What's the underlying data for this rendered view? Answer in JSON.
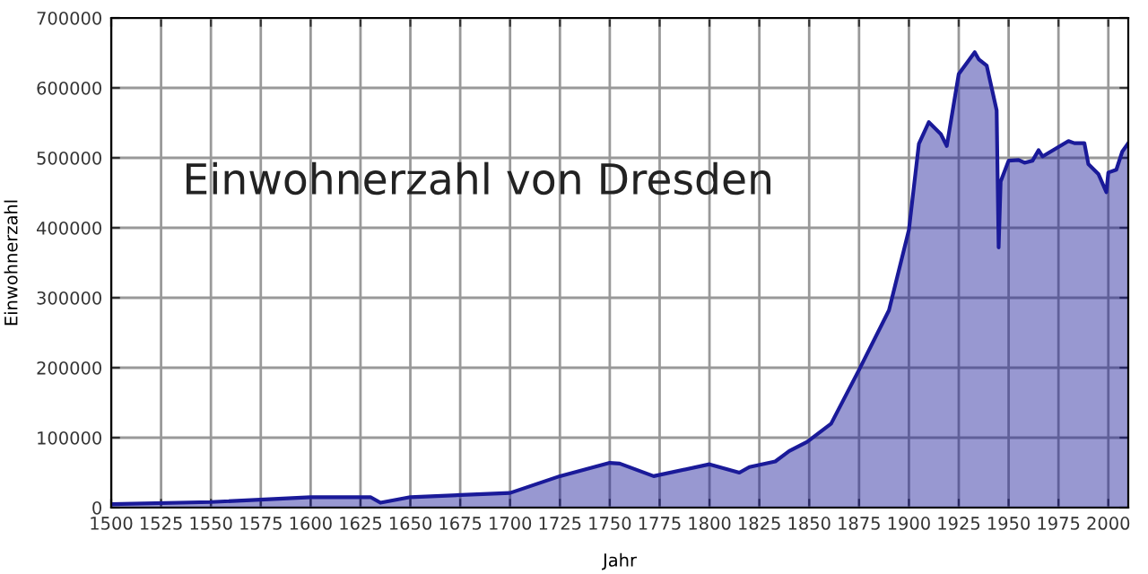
{
  "chart_data": {
    "type": "area",
    "title": "Einwohnerzahl von Dresden",
    "xlabel": "Jahr",
    "ylabel": "Einwohnerzahl",
    "x": [
      1500,
      1550,
      1600,
      1630,
      1635,
      1650,
      1700,
      1725,
      1750,
      1755,
      1772,
      1800,
      1815,
      1820,
      1833,
      1840,
      1849,
      1861,
      1875,
      1890,
      1900,
      1905,
      1910,
      1916,
      1919,
      1925,
      1933,
      1935,
      1939,
      1944,
      1945,
      1946,
      1950,
      1955,
      1958,
      1962,
      1965,
      1967,
      1980,
      1983,
      1988,
      1990,
      1995,
      1999,
      2000,
      2004,
      2007,
      2010
    ],
    "series": [
      {
        "color": "#1a1a99",
        "values": [
          5000,
          8000,
          15000,
          15000,
          7000,
          15000,
          21000,
          45000,
          64000,
          63000,
          45000,
          62000,
          50000,
          58000,
          66000,
          81000,
          94000,
          120000,
          197000,
          282000,
          397000,
          520000,
          551000,
          534000,
          517000,
          620000,
          651000,
          641000,
          632000,
          568000,
          372000,
          466000,
          496000,
          497000,
          493000,
          496000,
          511000,
          502000,
          524000,
          521000,
          521000,
          491000,
          477000,
          451000,
          479000,
          483000,
          509000,
          521000
        ]
      }
    ],
    "xlim": [
      1500,
      2010
    ],
    "xticks": [
      1500,
      1525,
      1550,
      1575,
      1600,
      1625,
      1650,
      1675,
      1700,
      1725,
      1750,
      1775,
      1800,
      1825,
      1850,
      1875,
      1900,
      1925,
      1950,
      1975,
      2000
    ],
    "ylim": [
      0,
      700000
    ],
    "yticks": [
      0,
      100000,
      200000,
      300000,
      400000,
      500000,
      600000,
      700000
    ],
    "grid": true,
    "legend": false
  }
}
